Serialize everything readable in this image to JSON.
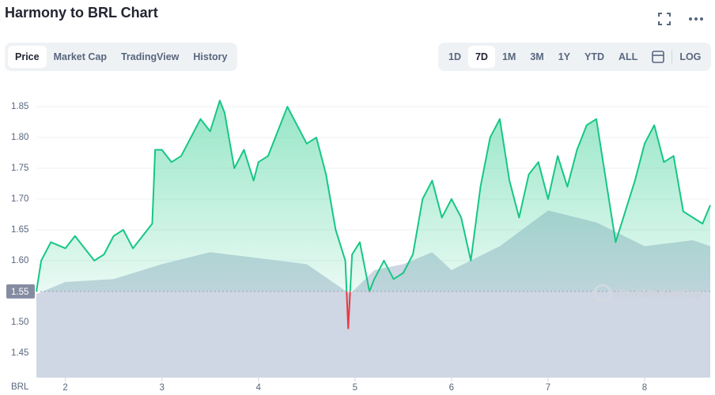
{
  "header": {
    "title": "Harmony to BRL Chart"
  },
  "tabs": [
    "Price",
    "Market Cap",
    "TradingView",
    "History"
  ],
  "ranges": [
    "1D",
    "7D",
    "1M",
    "3M",
    "1Y",
    "YTD",
    "ALL"
  ],
  "log_label": "LOG",
  "chart_data": {
    "type": "line",
    "watermark": "CoinMarketCap",
    "unit_label": "BRL",
    "color": "#16c784",
    "below_color": "#ea3943",
    "baseline": 1.55,
    "x": [
      1.7,
      1.75,
      1.85,
      2.0,
      2.1,
      2.2,
      2.3,
      2.4,
      2.5,
      2.6,
      2.7,
      2.8,
      2.9,
      2.93,
      3.0,
      3.1,
      3.2,
      3.3,
      3.4,
      3.5,
      3.6,
      3.65,
      3.75,
      3.85,
      3.95,
      4.0,
      4.1,
      4.2,
      4.3,
      4.4,
      4.5,
      4.6,
      4.7,
      4.8,
      4.9,
      4.93,
      4.97,
      5.05,
      5.15,
      5.2,
      5.3,
      5.4,
      5.5,
      5.6,
      5.7,
      5.8,
      5.9,
      6.0,
      6.1,
      6.2,
      6.3,
      6.4,
      6.5,
      6.6,
      6.7,
      6.8,
      6.9,
      7.0,
      7.1,
      7.2,
      7.3,
      7.4,
      7.5,
      7.6,
      7.7,
      7.8,
      7.9,
      8.0,
      8.1,
      8.2,
      8.3,
      8.4,
      8.5,
      8.6,
      8.68
    ],
    "values": [
      1.55,
      1.6,
      1.63,
      1.62,
      1.64,
      1.62,
      1.6,
      1.61,
      1.64,
      1.65,
      1.62,
      1.64,
      1.66,
      1.78,
      1.78,
      1.76,
      1.77,
      1.8,
      1.83,
      1.81,
      1.86,
      1.84,
      1.75,
      1.78,
      1.73,
      1.76,
      1.77,
      1.81,
      1.85,
      1.82,
      1.79,
      1.8,
      1.74,
      1.65,
      1.6,
      1.49,
      1.61,
      1.63,
      1.55,
      1.57,
      1.6,
      1.57,
      1.58,
      1.61,
      1.7,
      1.73,
      1.67,
      1.7,
      1.67,
      1.6,
      1.72,
      1.8,
      1.83,
      1.73,
      1.67,
      1.74,
      1.76,
      1.7,
      1.77,
      1.72,
      1.78,
      1.82,
      1.83,
      1.73,
      1.63,
      1.68,
      1.73,
      1.79,
      1.82,
      1.76,
      1.77,
      1.68,
      1.67,
      1.66,
      1.69
    ],
    "volume": {
      "x": [
        1.7,
        2.0,
        2.5,
        3.0,
        3.5,
        4.0,
        4.5,
        4.95,
        5.2,
        5.5,
        5.8,
        6.0,
        6.5,
        7.0,
        7.5,
        8.0,
        8.5,
        8.68
      ],
      "values": [
        28,
        32,
        33,
        38,
        42,
        40,
        38,
        28,
        36,
        38,
        42,
        36,
        44,
        56,
        52,
        44,
        46,
        44
      ],
      "ylim": [
        0,
        100
      ],
      "color": "#cfd6e4"
    },
    "xlim": [
      1.7,
      8.68
    ],
    "xticks": [
      2,
      3,
      4,
      5,
      6,
      7,
      8
    ],
    "ylim": [
      1.41,
      1.895
    ],
    "yticks": [
      1.45,
      {
        "value": 1.5,
        "label": "1.50"
      },
      {
        "value": 1.6,
        "label": "1.60"
      },
      1.65,
      {
        "value": 1.7,
        "label": "1.70"
      },
      1.75,
      {
        "value": 1.8,
        "label": "1.80"
      },
      1.85
    ],
    "grid": true
  }
}
